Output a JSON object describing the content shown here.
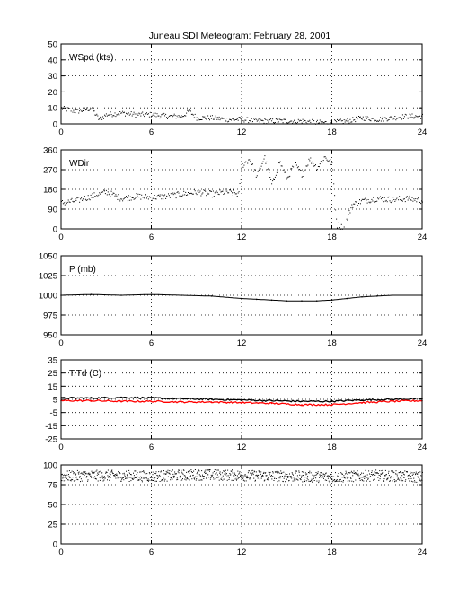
{
  "figure": {
    "title": "Juneau SDI Meteogram:  February 28, 2001"
  },
  "chart_data": [
    {
      "type": "scatter",
      "panel_label": "WSpd (kts)",
      "xlim": [
        0,
        24
      ],
      "ylim": [
        0,
        50
      ],
      "xticks": [
        "0",
        "6",
        "12",
        "18",
        "24"
      ],
      "yticks": [
        "0",
        "10",
        "20",
        "30",
        "40",
        "50"
      ],
      "grid": true,
      "series": [
        {
          "color": "#000000",
          "x": [
            0,
            1,
            2,
            2.5,
            3,
            4,
            5,
            6,
            7,
            8,
            8.5,
            9,
            10,
            11,
            12,
            13,
            14,
            15,
            16,
            17,
            18,
            19,
            20,
            21,
            22,
            23,
            24
          ],
          "values": [
            10,
            8,
            10,
            3,
            6,
            7,
            6,
            6,
            5,
            5,
            8,
            4,
            4,
            3,
            3,
            2,
            2,
            2,
            2,
            1,
            1,
            2,
            4,
            3,
            4,
            5,
            5
          ]
        }
      ]
    },
    {
      "type": "scatter",
      "panel_label": "WDir",
      "xlim": [
        0,
        24
      ],
      "ylim": [
        0,
        360
      ],
      "xticks": [
        "0",
        "6",
        "12",
        "18",
        "24"
      ],
      "yticks": [
        "0",
        "90",
        "180",
        "270",
        "360"
      ],
      "grid": true,
      "series": [
        {
          "color": "#000000",
          "x": [
            0,
            1,
            2,
            3,
            4,
            5,
            6,
            7,
            8,
            9,
            10,
            11,
            11.8,
            12,
            12.5,
            13,
            13.5,
            14,
            14.5,
            15,
            15.5,
            16,
            16.5,
            17,
            17.5,
            18,
            18.3,
            18.8,
            19.3,
            20,
            21,
            22,
            23,
            24
          ],
          "values": [
            120,
            130,
            150,
            170,
            140,
            150,
            145,
            150,
            160,
            170,
            160,
            170,
            160,
            290,
            320,
            240,
            330,
            200,
            310,
            230,
            300,
            250,
            320,
            280,
            330,
            300,
            20,
            5,
            110,
            130,
            140,
            135,
            140,
            130
          ]
        }
      ]
    },
    {
      "type": "line",
      "panel_label": "P (mb)",
      "xlim": [
        0,
        24
      ],
      "ylim": [
        950,
        1050
      ],
      "xticks": [
        "0",
        "6",
        "12",
        "18",
        "24"
      ],
      "yticks": [
        "950",
        "975",
        "1000",
        "1025",
        "1050"
      ],
      "grid": true,
      "series": [
        {
          "color": "#000000",
          "x": [
            0,
            2,
            4,
            6,
            8,
            10,
            12,
            13,
            14,
            15,
            16,
            17,
            18,
            19,
            20,
            21,
            22,
            24
          ],
          "values": [
            1000,
            1001,
            1000,
            1001,
            1000,
            999,
            996,
            995,
            994,
            993,
            993,
            993,
            994,
            996,
            998,
            999,
            1000,
            1000
          ]
        }
      ]
    },
    {
      "type": "line",
      "panel_label": "T,Td (C)",
      "xlim": [
        0,
        24
      ],
      "ylim": [
        -25,
        35
      ],
      "xticks": [
        "0",
        "6",
        "12",
        "18",
        "24"
      ],
      "yticks": [
        "-25",
        "-15",
        "-5",
        "5",
        "15",
        "25",
        "35"
      ],
      "grid": true,
      "series": [
        {
          "color": "#000000",
          "x": [
            0,
            2,
            4,
            6,
            8,
            10,
            12,
            14,
            16,
            18,
            20,
            22,
            24
          ],
          "values": [
            6,
            6,
            6.5,
            6,
            5.5,
            5,
            4.5,
            4,
            3.5,
            3.5,
            4.5,
            5,
            5.5
          ]
        },
        {
          "color": "#ff0000",
          "x": [
            0,
            2,
            4,
            6,
            8,
            10,
            12,
            14,
            16,
            18,
            20,
            22,
            24
          ],
          "values": [
            4,
            4,
            3.5,
            3.5,
            3,
            3,
            2.5,
            2,
            1,
            1,
            2.5,
            3.5,
            4
          ]
        }
      ]
    },
    {
      "type": "scatter",
      "panel_label": "",
      "xlim": [
        0,
        24
      ],
      "ylim": [
        0,
        100
      ],
      "xticks": [
        "0",
        "6",
        "12",
        "18",
        "24"
      ],
      "yticks": [
        "0",
        "25",
        "50",
        "75",
        "100"
      ],
      "grid": true,
      "series": [
        {
          "color": "#000000",
          "x": [
            0,
            3,
            6,
            9,
            12,
            15,
            18,
            21,
            24
          ],
          "values": [
            86,
            87,
            86,
            88,
            87,
            86,
            85,
            87,
            85
          ]
        }
      ]
    }
  ]
}
